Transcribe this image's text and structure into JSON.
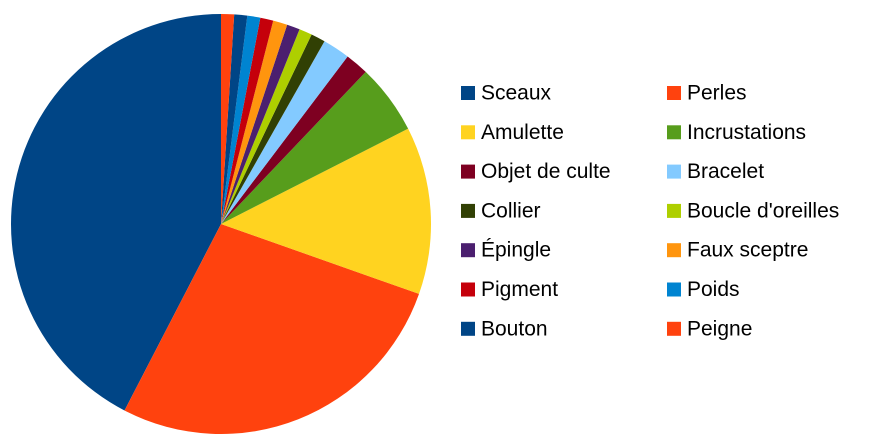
{
  "chart_data": {
    "type": "pie",
    "categories": [
      "Sceaux",
      "Perles",
      "Amulette",
      "Incrustations",
      "Objet de culte",
      "Bracelet",
      "Collier",
      "Boucle d'oreilles",
      "Épingle",
      "Faux sceptre",
      "Pigment",
      "Poids",
      "Bouton",
      "Peigne"
    ],
    "values": [
      42.4,
      27.2,
      12.9,
      5.4,
      1.8,
      2.1,
      1.1,
      1.0,
      1.0,
      1.1,
      1.0,
      1.0,
      1.0,
      1.0
    ],
    "colors": [
      "#004586",
      "#ff420e",
      "#ffd320",
      "#579d1c",
      "#7e0021",
      "#83caff",
      "#314004",
      "#aecf00",
      "#4b1f6f",
      "#ff950e",
      "#c5000b",
      "#0084d1",
      "#004586",
      "#ff420e"
    ],
    "direction": "counterclockwise",
    "legend": "right"
  }
}
